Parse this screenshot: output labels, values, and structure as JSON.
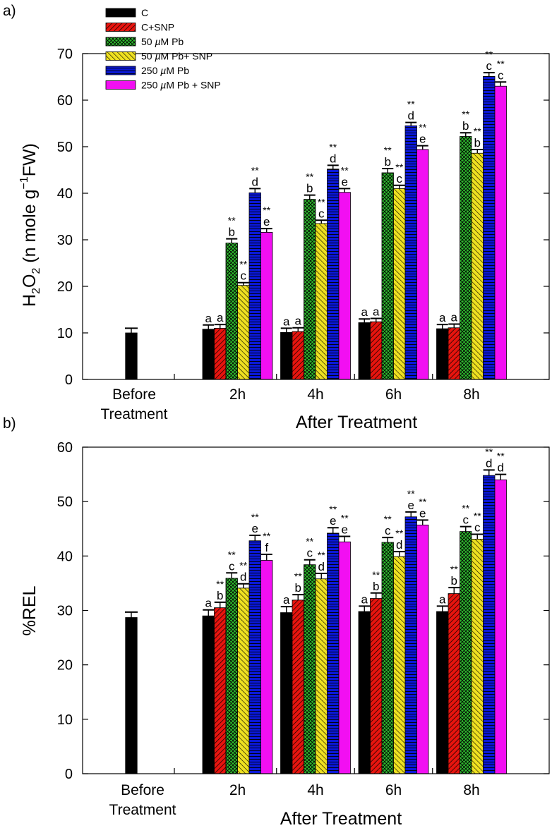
{
  "colors": {
    "C": "#000000",
    "C+SNP": "#e8140e",
    "50 µM Pb": "#2fbb2f",
    "50 µM Pb+ SNP": "#eee020",
    "250 µM Pb": "#0a18d8",
    "250 µM Pb + SNP": "#f20ff2"
  },
  "chart_data": [
    {
      "type": "bar",
      "panel_label": "a)",
      "ylabel_parts": [
        "H",
        "2",
        "O",
        "2",
        " (n mole g",
        "−1",
        "FW)"
      ],
      "xlabel": "After Treatment",
      "ylim": [
        0,
        70
      ],
      "yticks": [
        0,
        10,
        20,
        30,
        40,
        50,
        60,
        70
      ],
      "before": {
        "label_lines": [
          "Before",
          "Treatment"
        ],
        "value": 10,
        "error": 1.0
      },
      "categories": [
        "2h",
        "4h",
        "6h",
        "8h"
      ],
      "legend": [
        "C",
        "C+SNP",
        "50 µM Pb",
        "50 µM Pb+ SNP",
        "250 µM Pb",
        "250 µM Pb + SNP"
      ],
      "series": [
        {
          "name": "C",
          "values": [
            10.8,
            10.1,
            12.2,
            10.9
          ],
          "errors": [
            0.9,
            0.9,
            0.8,
            0.9
          ],
          "letters": [
            "a",
            "a",
            "a",
            "a"
          ],
          "sig": [
            "",
            "",
            "",
            ""
          ]
        },
        {
          "name": "C+SNP",
          "values": [
            11.0,
            10.3,
            12.4,
            11.1
          ],
          "errors": [
            0.8,
            0.8,
            0.7,
            0.8
          ],
          "letters": [
            "a",
            "a",
            "a",
            "a"
          ],
          "sig": [
            "",
            "",
            "",
            ""
          ]
        },
        {
          "name": "50 µM Pb",
          "values": [
            29.3,
            38.7,
            44.4,
            52.2
          ],
          "errors": [
            0.9,
            0.9,
            0.9,
            0.8
          ],
          "letters": [
            "b",
            "b",
            "b",
            "b"
          ],
          "sig": [
            "**",
            "**",
            "**",
            "**"
          ]
        },
        {
          "name": "50 µM Pb+ SNP",
          "values": [
            20.2,
            33.5,
            41.0,
            48.6
          ],
          "errors": [
            0.6,
            0.7,
            0.7,
            0.8
          ],
          "letters": [
            "c",
            "c",
            "c",
            "b"
          ],
          "sig": [
            "**",
            "**",
            "**",
            "**"
          ]
        },
        {
          "name": "250 µM Pb",
          "values": [
            40.1,
            45.2,
            54.5,
            65.1
          ],
          "errors": [
            0.9,
            0.8,
            0.7,
            0.8
          ],
          "letters": [
            "d",
            "d",
            "d",
            "c"
          ],
          "sig": [
            "**",
            "**",
            "**",
            "**"
          ]
        },
        {
          "name": "250 µM Pb + SNP",
          "values": [
            31.6,
            40.2,
            49.4,
            63.0
          ],
          "errors": [
            0.8,
            0.8,
            0.8,
            0.9
          ],
          "letters": [
            "e",
            "e",
            "e",
            "c"
          ],
          "sig": [
            "**",
            "**",
            "**",
            "**"
          ]
        }
      ]
    },
    {
      "type": "bar",
      "panel_label": "b)",
      "ylabel_parts": [
        "%REL"
      ],
      "xlabel": "After Treatment",
      "ylim": [
        0,
        60
      ],
      "yticks": [
        0,
        10,
        20,
        30,
        40,
        50,
        60
      ],
      "before": {
        "label_lines": [
          "Before",
          "Treatment"
        ],
        "value": 28.7,
        "error": 1.0
      },
      "categories": [
        "2h",
        "4h",
        "6h",
        "8h"
      ],
      "series": [
        {
          "name": "C",
          "values": [
            29.0,
            29.6,
            29.8,
            29.8
          ],
          "errors": [
            1.1,
            1.1,
            1.0,
            1.0
          ],
          "letters": [
            "a",
            "a",
            "a",
            "a"
          ],
          "sig": [
            "",
            "",
            "",
            ""
          ]
        },
        {
          "name": "C+SNP",
          "values": [
            30.5,
            31.9,
            32.2,
            33.1
          ],
          "errors": [
            1.0,
            1.0,
            1.0,
            1.1
          ],
          "letters": [
            "b",
            "b",
            "b",
            "b"
          ],
          "sig": [
            "**",
            "**",
            "**",
            "**"
          ]
        },
        {
          "name": "50 µM Pb",
          "values": [
            35.9,
            38.4,
            42.5,
            44.5
          ],
          "errors": [
            1.0,
            0.9,
            0.9,
            0.9
          ],
          "letters": [
            "c",
            "c",
            "c",
            "c"
          ],
          "sig": [
            "**",
            "**",
            "**",
            "**"
          ]
        },
        {
          "name": "50 µM Pb+ SNP",
          "values": [
            34.1,
            35.8,
            39.9,
            43.1
          ],
          "errors": [
            0.8,
            1.0,
            0.9,
            0.9
          ],
          "letters": [
            "d",
            "d",
            "d",
            "c"
          ],
          "sig": [
            "**",
            "**",
            "**",
            "**"
          ]
        },
        {
          "name": "250 µM Pb",
          "values": [
            42.8,
            44.2,
            47.2,
            54.8
          ],
          "errors": [
            1.0,
            1.0,
            0.9,
            1.0
          ],
          "letters": [
            "e",
            "e",
            "e",
            "d"
          ],
          "sig": [
            "**",
            "**",
            "**",
            "**"
          ]
        },
        {
          "name": "250 µM Pb + SNP",
          "values": [
            39.2,
            42.6,
            45.7,
            54.0
          ],
          "errors": [
            1.1,
            1.0,
            0.9,
            1.0
          ],
          "letters": [
            "f",
            "e",
            "e",
            "d"
          ],
          "sig": [
            "**",
            "**",
            "**",
            "**"
          ]
        }
      ]
    }
  ]
}
